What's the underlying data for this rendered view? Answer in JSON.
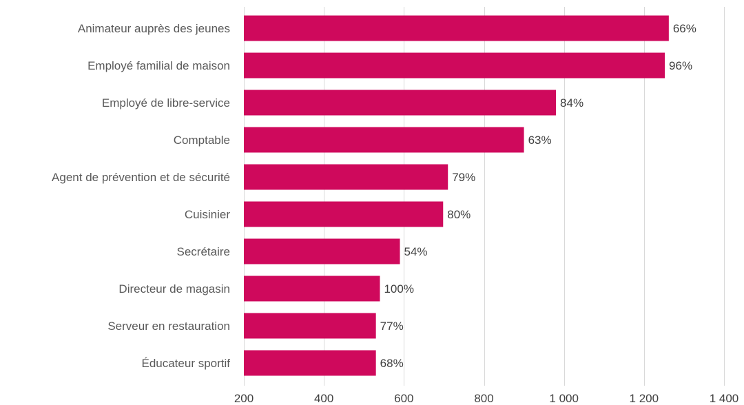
{
  "chart_data": {
    "type": "bar",
    "orientation": "horizontal",
    "categories": [
      "Animateur auprès des jeunes",
      "Employé familial de maison",
      "Employé de libre-service",
      "Comptable",
      "Agent de prévention et de sécurité",
      "Cuisinier",
      "Secrétaire",
      "Directeur de magasin",
      "Serveur en restauration",
      "Éducateur sportif"
    ],
    "values": [
      1262,
      1252,
      980,
      900,
      710,
      698,
      590,
      540,
      530,
      530
    ],
    "data_labels": [
      "66%",
      "96%",
      "84%",
      "63%",
      "79%",
      "80%",
      "54%",
      "100%",
      "77%",
      "68%"
    ],
    "xlim": [
      200,
      1400
    ],
    "x_ticks": [
      200,
      400,
      600,
      800,
      1000,
      1200,
      1400
    ],
    "x_tick_labels": [
      "200",
      "400",
      "600",
      "800",
      "1 000",
      "1 200",
      "1 400"
    ],
    "grid": true,
    "bar_color": "#cf095c",
    "title": "",
    "xlabel": "",
    "ylabel": ""
  }
}
